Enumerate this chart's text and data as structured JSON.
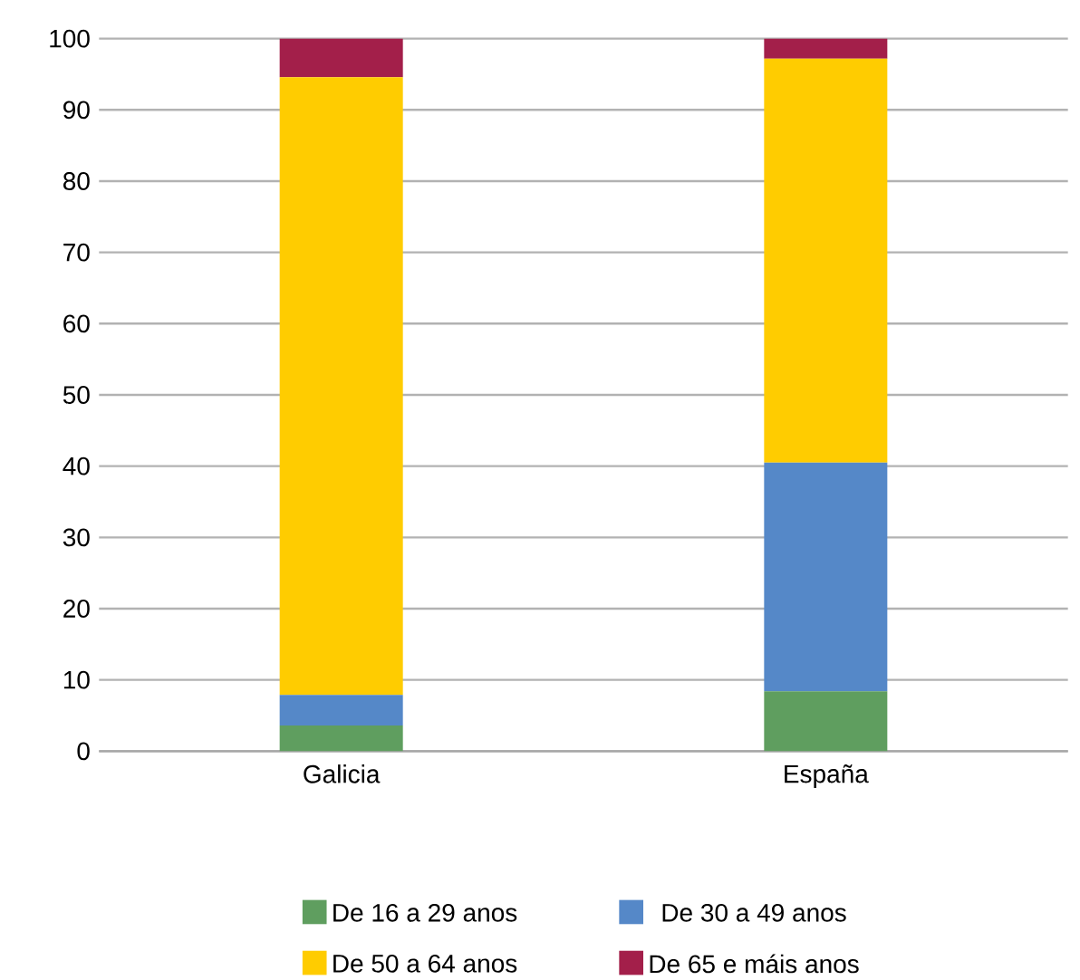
{
  "chart_data": {
    "type": "bar",
    "stacked": true,
    "categories": [
      "Galicia",
      "España"
    ],
    "series": [
      {
        "name": "De 16 a 29 anos",
        "color": "#5f9e5f",
        "values": [
          3.6,
          8.4
        ]
      },
      {
        "name": "De 30 a 49 anos",
        "color": "#5588c8",
        "values": [
          4.3,
          32.1
        ]
      },
      {
        "name": "De 50 a 64 anos",
        "color": "#ffcc00",
        "values": [
          86.7,
          56.7
        ]
      },
      {
        "name": "De 65 e máis anos",
        "color": "#a31f4a",
        "values": [
          5.4,
          2.8
        ]
      }
    ],
    "ylim": [
      0,
      100
    ],
    "yticks": [
      0,
      10,
      20,
      30,
      40,
      50,
      60,
      70,
      80,
      90,
      100
    ],
    "grid": "y",
    "legend": "bottom"
  }
}
